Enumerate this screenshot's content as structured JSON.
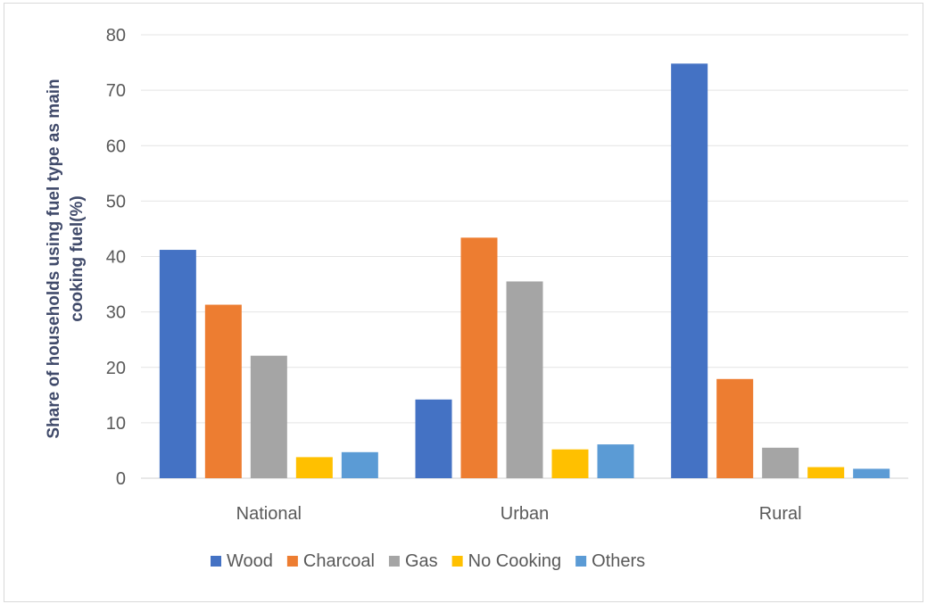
{
  "chart_data": {
    "type": "bar",
    "title": "",
    "xlabel": "",
    "ylabel": "Share of households using fuel type as main cooking fuel(%)",
    "ylabel_lines": [
      "Share of households using fuel type as main",
      "cooking fuel(%)"
    ],
    "ylim": [
      0,
      80
    ],
    "yticks": [
      "0",
      "10",
      "20",
      "30",
      "40",
      "50",
      "60",
      "70",
      "80"
    ],
    "grid": true,
    "legend_position": "bottom",
    "categories": [
      "National",
      "Urban",
      "Rural"
    ],
    "series": [
      {
        "name": "Wood",
        "color": "#4472c4",
        "values": [
          41.2,
          14.2,
          74.8
        ]
      },
      {
        "name": "Charcoal",
        "color": "#ed7d31",
        "values": [
          31.3,
          43.4,
          17.9
        ]
      },
      {
        "name": "Gas",
        "color": "#a5a5a5",
        "values": [
          22.1,
          35.5,
          5.5
        ]
      },
      {
        "name": "No Cooking",
        "color": "#ffc000",
        "values": [
          3.8,
          5.2,
          2.0
        ]
      },
      {
        "name": "Others",
        "color": "#5b9bd5",
        "values": [
          4.7,
          6.1,
          1.7
        ]
      }
    ]
  }
}
